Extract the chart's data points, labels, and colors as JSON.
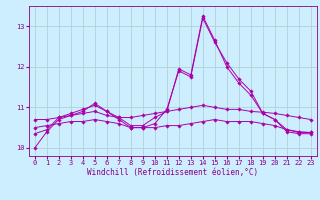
{
  "xlabel": "Windchill (Refroidissement éolien,°C)",
  "x": [
    0,
    1,
    2,
    3,
    4,
    5,
    6,
    7,
    8,
    9,
    10,
    11,
    12,
    13,
    14,
    15,
    16,
    17,
    18,
    19,
    20,
    21,
    22,
    23
  ],
  "series": [
    [
      10.0,
      10.4,
      10.7,
      10.8,
      10.9,
      11.1,
      10.9,
      10.7,
      10.5,
      10.5,
      10.6,
      10.95,
      11.9,
      11.75,
      13.2,
      12.6,
      12.1,
      11.7,
      11.4,
      10.85,
      10.7,
      10.4,
      10.35,
      10.35
    ],
    [
      10.7,
      10.7,
      10.75,
      10.8,
      10.85,
      10.9,
      10.8,
      10.75,
      10.75,
      10.8,
      10.85,
      10.9,
      10.95,
      11.0,
      11.05,
      11.0,
      10.95,
      10.95,
      10.9,
      10.88,
      10.85,
      10.8,
      10.75,
      10.7
    ],
    [
      10.5,
      10.55,
      10.6,
      10.65,
      10.65,
      10.7,
      10.65,
      10.6,
      10.5,
      10.5,
      10.5,
      10.55,
      10.55,
      10.6,
      10.65,
      10.7,
      10.65,
      10.65,
      10.65,
      10.6,
      10.55,
      10.45,
      10.4,
      10.38
    ],
    [
      10.35,
      10.45,
      10.75,
      10.85,
      10.95,
      11.05,
      10.9,
      10.75,
      10.55,
      10.55,
      10.75,
      10.9,
      11.95,
      11.8,
      13.25,
      12.65,
      12.0,
      11.6,
      11.3,
      10.85,
      10.7,
      10.45,
      10.38,
      10.38
    ]
  ],
  "line_color": "#AA00AA",
  "bg_color": "#CCEEFF",
  "grid_color": "#AACCCC",
  "tick_color": "#880088",
  "ylim": [
    9.8,
    13.5
  ],
  "ytick_vals": [
    10,
    11,
    12,
    13
  ],
  "ytick_labels": [
    "10",
    "11",
    "12",
    "13"
  ],
  "marker": "D",
  "markersize": 1.8,
  "linewidth": 0.7,
  "tick_fontsize": 5.0,
  "xlabel_fontsize": 5.5
}
